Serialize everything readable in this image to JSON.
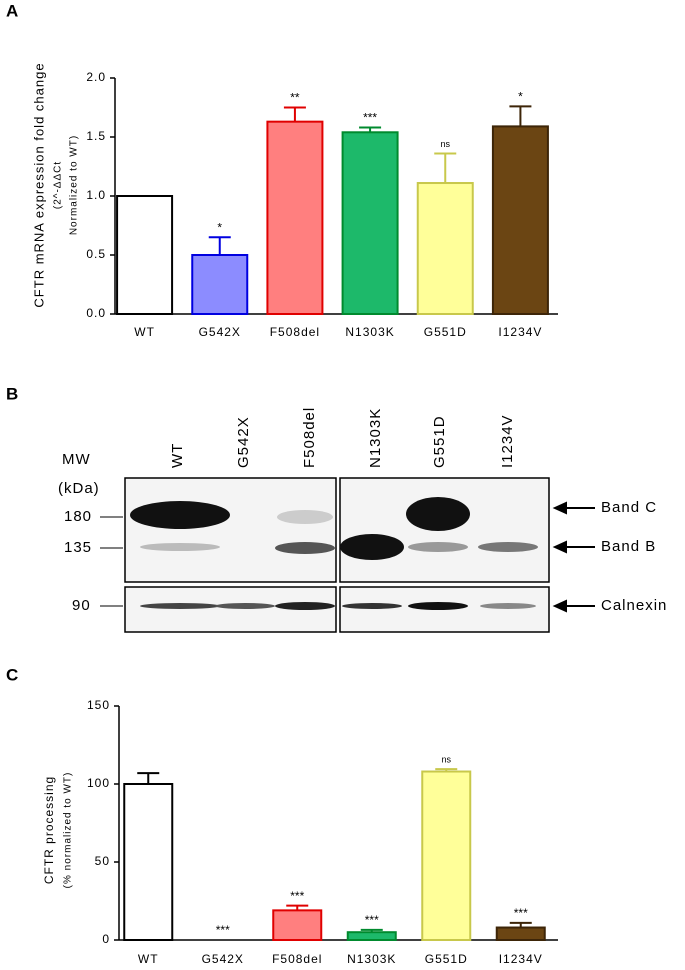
{
  "panel_labels": [
    "A",
    "B",
    "C"
  ],
  "chart_data": [
    {
      "type": "bar",
      "ylabel_lines": [
        "CFTR mRNA expression fold change",
        "(2^-ΔΔCt",
        "Normalized to WT)"
      ],
      "categories": [
        "WT",
        "G542X",
        "F508del",
        "N1303K",
        "G551D",
        "I1234V"
      ],
      "values": [
        1.0,
        0.5,
        1.63,
        1.54,
        1.11,
        1.59
      ],
      "errors": [
        null,
        0.15,
        0.12,
        0.04,
        0.25,
        0.17
      ],
      "annotations": [
        null,
        "*",
        "**",
        "***",
        "ns",
        "*"
      ],
      "colors": [
        "#ffffff",
        "#8c8cff",
        "#ff7f7f",
        "#1db96a",
        "#ffff99",
        "#6b4513"
      ],
      "edge_colors": [
        "#000000",
        "#0000e0",
        "#e00000",
        "#008a2e",
        "#c8c84b",
        "#3d2508"
      ],
      "ylim": [
        0,
        2.0
      ],
      "yticks": [
        {
          "value": 0,
          "label": "0.0"
        },
        {
          "value": 0.5,
          "label": "0.5"
        },
        {
          "value": 1.0,
          "label": "1.0"
        },
        {
          "value": 1.5,
          "label": "1.5"
        },
        {
          "value": 2.0,
          "label": "2.0"
        }
      ]
    },
    {
      "type": "bar",
      "ylabel_lines": [
        "CFTR processing",
        "(% normalized to WT)"
      ],
      "categories": [
        "WT",
        "G542X",
        "F508del",
        "N1303K",
        "G551D",
        "I1234V"
      ],
      "values": [
        100,
        0,
        19,
        5,
        108,
        8
      ],
      "errors": [
        7,
        null,
        3,
        1.5,
        1.5,
        3
      ],
      "annotations": [
        null,
        "***",
        "***",
        "***",
        "ns",
        "***"
      ],
      "colors": [
        "#ffffff",
        "#8c8cff",
        "#ff7f7f",
        "#1db96a",
        "#ffff99",
        "#6b4513"
      ],
      "edge_colors": [
        "#000000",
        "#0000e0",
        "#e00000",
        "#008a2e",
        "#c8c84b",
        "#3d2508"
      ],
      "ylim": [
        0,
        150
      ],
      "yticks": [
        0,
        50,
        100,
        150
      ]
    }
  ],
  "blot": {
    "mw_label": "MW",
    "unit_label": "(kDa)",
    "lanes": [
      "WT",
      "G542X",
      "F508del",
      "N1303K",
      "G551D",
      "I1234V"
    ],
    "markers": [
      180,
      135,
      90
    ],
    "band_labels": [
      "Band C",
      "Band B",
      "Calnexin"
    ]
  }
}
